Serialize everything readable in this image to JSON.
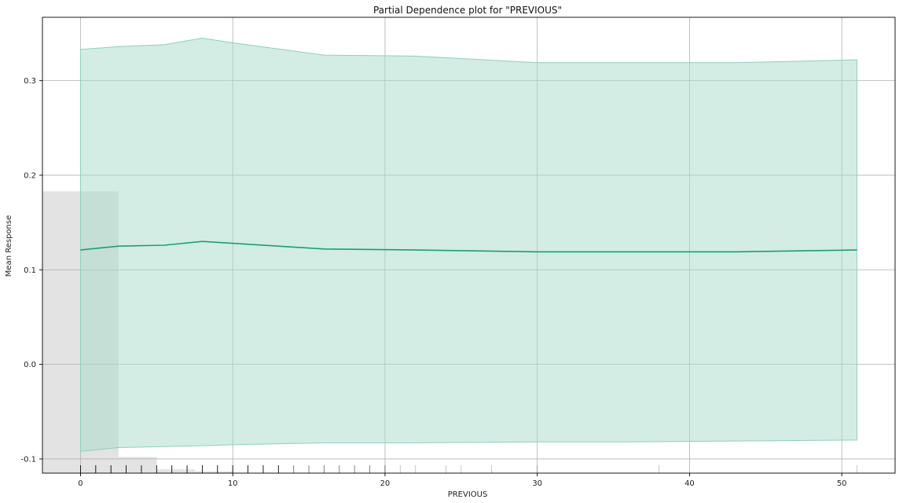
{
  "chart_data": {
    "type": "line",
    "title": "Partial Dependence plot for \"PREVIOUS\"",
    "xlabel": "PREVIOUS",
    "ylabel": "Mean Response",
    "xlim": [
      -2.5,
      53.5
    ],
    "ylim": [
      -0.115,
      0.367
    ],
    "xticks": [
      0,
      10,
      20,
      30,
      40,
      50
    ],
    "yticks": [
      -0.1,
      0.0,
      0.1,
      0.2,
      0.3
    ],
    "grid": true,
    "colors": {
      "line": "#1b9e77",
      "band": "#a8dcc9",
      "band_edge": "#8fd0b8",
      "hist": "#b0b0b0",
      "grid": "#b0b0b0",
      "rug": "#000000"
    },
    "series": [
      {
        "x": [
          0,
          2.5,
          5.5,
          8,
          10,
          16,
          22,
          30,
          36,
          43,
          51
        ],
        "y": [
          0.121,
          0.125,
          0.126,
          0.13,
          0.128,
          0.122,
          0.121,
          0.119,
          0.119,
          0.119,
          0.121
        ],
        "upper": [
          0.333,
          0.336,
          0.338,
          0.345,
          0.34,
          0.327,
          0.326,
          0.319,
          0.319,
          0.319,
          0.322
        ],
        "lower": [
          -0.092,
          -0.088,
          -0.087,
          -0.086,
          -0.085,
          -0.083,
          -0.083,
          -0.082,
          -0.082,
          -0.081,
          -0.08
        ]
      }
    ],
    "histogram": [
      {
        "x0": -2.5,
        "x1": 2.5,
        "top": 0.183
      },
      {
        "x0": 2.5,
        "x1": 5,
        "top": -0.098
      },
      {
        "x0": 5,
        "x1": 7.5,
        "top": -0.111
      },
      {
        "x0": 7.5,
        "x1": 10,
        "top": -0.113
      }
    ],
    "rug": [
      0,
      1,
      2,
      3,
      4,
      5,
      6,
      7,
      8,
      9,
      10,
      11,
      12,
      13,
      14,
      15,
      16,
      17,
      18,
      19,
      20,
      21,
      22,
      24,
      25,
      27,
      30,
      38,
      51
    ]
  }
}
